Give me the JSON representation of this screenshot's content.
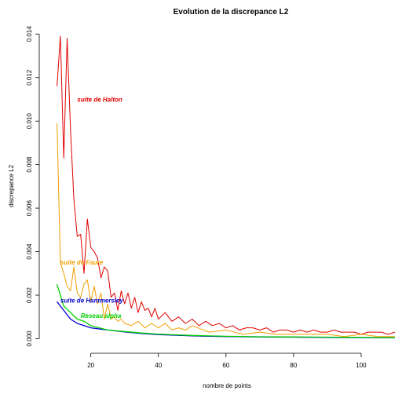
{
  "chart_data": {
    "type": "line",
    "title": "Evolution de la discrepance L2",
    "xlabel": "nombre de points",
    "ylabel": "discrepance L2",
    "xlim": [
      8,
      110
    ],
    "ylim": [
      -0.0002,
      0.0143
    ],
    "xticks": [
      20,
      40,
      60,
      80,
      100
    ],
    "yticks": [
      "0.000",
      "0.002",
      "0.004",
      "0.006",
      "0.008",
      "0.010",
      "0.012",
      "0.014"
    ],
    "grid": false,
    "series": [
      {
        "name": "suite de Halton",
        "color": "#e00000",
        "label_at": [
          16,
          0.0109
        ],
        "x": [
          10,
          11,
          12,
          13,
          14,
          15,
          16,
          17,
          18,
          19,
          20,
          21,
          22,
          23,
          24,
          25,
          26,
          27,
          28,
          29,
          30,
          31,
          32,
          33,
          34,
          35,
          36,
          37,
          38,
          39,
          40,
          42,
          44,
          46,
          48,
          50,
          52,
          54,
          56,
          58,
          60,
          62,
          64,
          66,
          68,
          70,
          72,
          74,
          76,
          78,
          80,
          82,
          84,
          86,
          88,
          90,
          92,
          94,
          96,
          98,
          100,
          102,
          104,
          106,
          108,
          110
        ],
        "values": [
          0.0116,
          0.0139,
          0.0083,
          0.0138,
          0.0096,
          0.0064,
          0.0047,
          0.0048,
          0.003,
          0.0055,
          0.0042,
          0.004,
          0.0037,
          0.0028,
          0.0033,
          0.0031,
          0.0019,
          0.0021,
          0.0013,
          0.0022,
          0.0016,
          0.0021,
          0.0014,
          0.0019,
          0.0012,
          0.0017,
          0.0013,
          0.0014,
          0.001,
          0.0014,
          0.0009,
          0.0012,
          0.0008,
          0.001,
          0.0007,
          0.0009,
          0.0006,
          0.0008,
          0.0006,
          0.0007,
          0.0005,
          0.0006,
          0.0004,
          0.0005,
          0.0005,
          0.0004,
          0.0005,
          0.0003,
          0.0004,
          0.0004,
          0.0003,
          0.0004,
          0.0003,
          0.0004,
          0.0003,
          0.0003,
          0.0004,
          0.0003,
          0.0003,
          0.0003,
          0.0002,
          0.0003,
          0.0003,
          0.0003,
          0.0002,
          0.0003
        ]
      },
      {
        "name": "suite de Faure",
        "color": "#f0a000",
        "label_at": [
          11,
          0.0034
        ],
        "x": [
          10,
          11,
          12,
          13,
          14,
          15,
          16,
          17,
          18,
          19,
          20,
          21,
          22,
          23,
          24,
          25,
          26,
          27,
          28,
          29,
          30,
          32,
          34,
          36,
          38,
          40,
          42,
          44,
          46,
          48,
          50,
          55,
          60,
          65,
          70,
          75,
          80,
          85,
          90,
          95,
          100,
          105,
          110
        ],
        "values": [
          0.0099,
          0.0035,
          0.003,
          0.0024,
          0.0022,
          0.0033,
          0.0021,
          0.0019,
          0.0025,
          0.0027,
          0.0017,
          0.0024,
          0.0016,
          0.0021,
          0.0009,
          0.0016,
          0.0009,
          0.001,
          0.0008,
          0.0009,
          0.0007,
          0.0006,
          0.0008,
          0.0005,
          0.0007,
          0.0005,
          0.0007,
          0.0004,
          0.0005,
          0.0004,
          0.0006,
          0.0003,
          0.0004,
          0.0002,
          0.0003,
          0.0002,
          0.0002,
          0.0002,
          0.0002,
          0.0001,
          0.0002,
          0.0001,
          0.0001
        ]
      },
      {
        "name": "suite de Hammersley",
        "color": "#0000d0",
        "label_at": [
          11,
          0.00165
        ],
        "x": [
          10,
          12,
          14,
          16,
          18,
          20,
          25,
          30,
          35,
          40,
          50,
          60,
          70,
          80,
          90,
          100,
          110
        ],
        "values": [
          0.0017,
          0.0013,
          0.0009,
          0.0007,
          0.0006,
          0.0005,
          0.0004,
          0.00031,
          0.00024,
          0.00019,
          0.00013,
          0.0001,
          8e-05,
          7e-05,
          6e-05,
          5e-05,
          4e-05
        ]
      },
      {
        "name": "Reseau alpha",
        "color": "#00d000",
        "label_at": [
          17,
          0.00095
        ],
        "x": [
          10,
          12,
          14,
          16,
          18,
          20,
          25,
          30,
          35,
          40,
          50,
          60,
          70,
          80,
          90,
          100,
          110
        ],
        "values": [
          0.0025,
          0.0015,
          0.0012,
          0.0009,
          0.0008,
          0.0006,
          0.0004,
          0.00033,
          0.00026,
          0.00021,
          0.00015,
          0.00011,
          9e-05,
          8e-05,
          7e-05,
          6e-05,
          5e-05
        ]
      }
    ]
  }
}
